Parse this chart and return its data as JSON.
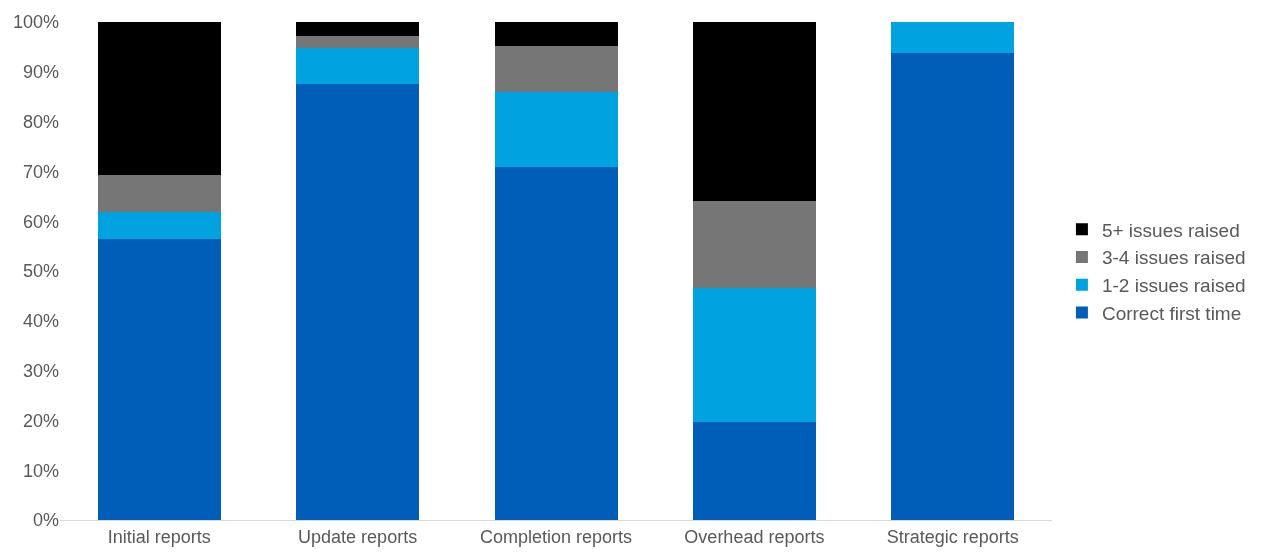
{
  "chart_data": {
    "type": "bar",
    "stacked": true,
    "categories": [
      "Initial reports",
      "Update reports",
      "Completion reports",
      "Overhead reports",
      "Strategic reports"
    ],
    "series": [
      {
        "name": "Correct first time",
        "color": "#005eb8",
        "values": [
          56.5,
          87.5,
          70.8,
          19.7,
          93.8
        ]
      },
      {
        "name": "1-2 issues raised",
        "color": "#00a3e0",
        "values": [
          5.3,
          7.3,
          15.1,
          26.8,
          6.2
        ]
      },
      {
        "name": "3-4 issues raised",
        "color": "#767676",
        "values": [
          7.4,
          2.4,
          9.3,
          17.5,
          0
        ]
      },
      {
        "name": "5+ issues raised",
        "color": "#000000",
        "values": [
          30.8,
          2.8,
          4.8,
          36.0,
          0
        ]
      }
    ],
    "ylim": [
      0,
      100
    ],
    "yticks": [
      {
        "value": 0,
        "label": "0%"
      },
      {
        "value": 10,
        "label": "10%"
      },
      {
        "value": 20,
        "label": "20%"
      },
      {
        "value": 30,
        "label": "30%"
      },
      {
        "value": 40,
        "label": "40%"
      },
      {
        "value": 50,
        "label": "50%"
      },
      {
        "value": 60,
        "label": "60%"
      },
      {
        "value": 70,
        "label": "70%"
      },
      {
        "value": 80,
        "label": "80%"
      },
      {
        "value": 90,
        "label": "90%"
      },
      {
        "value": 100,
        "label": "100%"
      }
    ],
    "grid": false,
    "legend": "right"
  }
}
